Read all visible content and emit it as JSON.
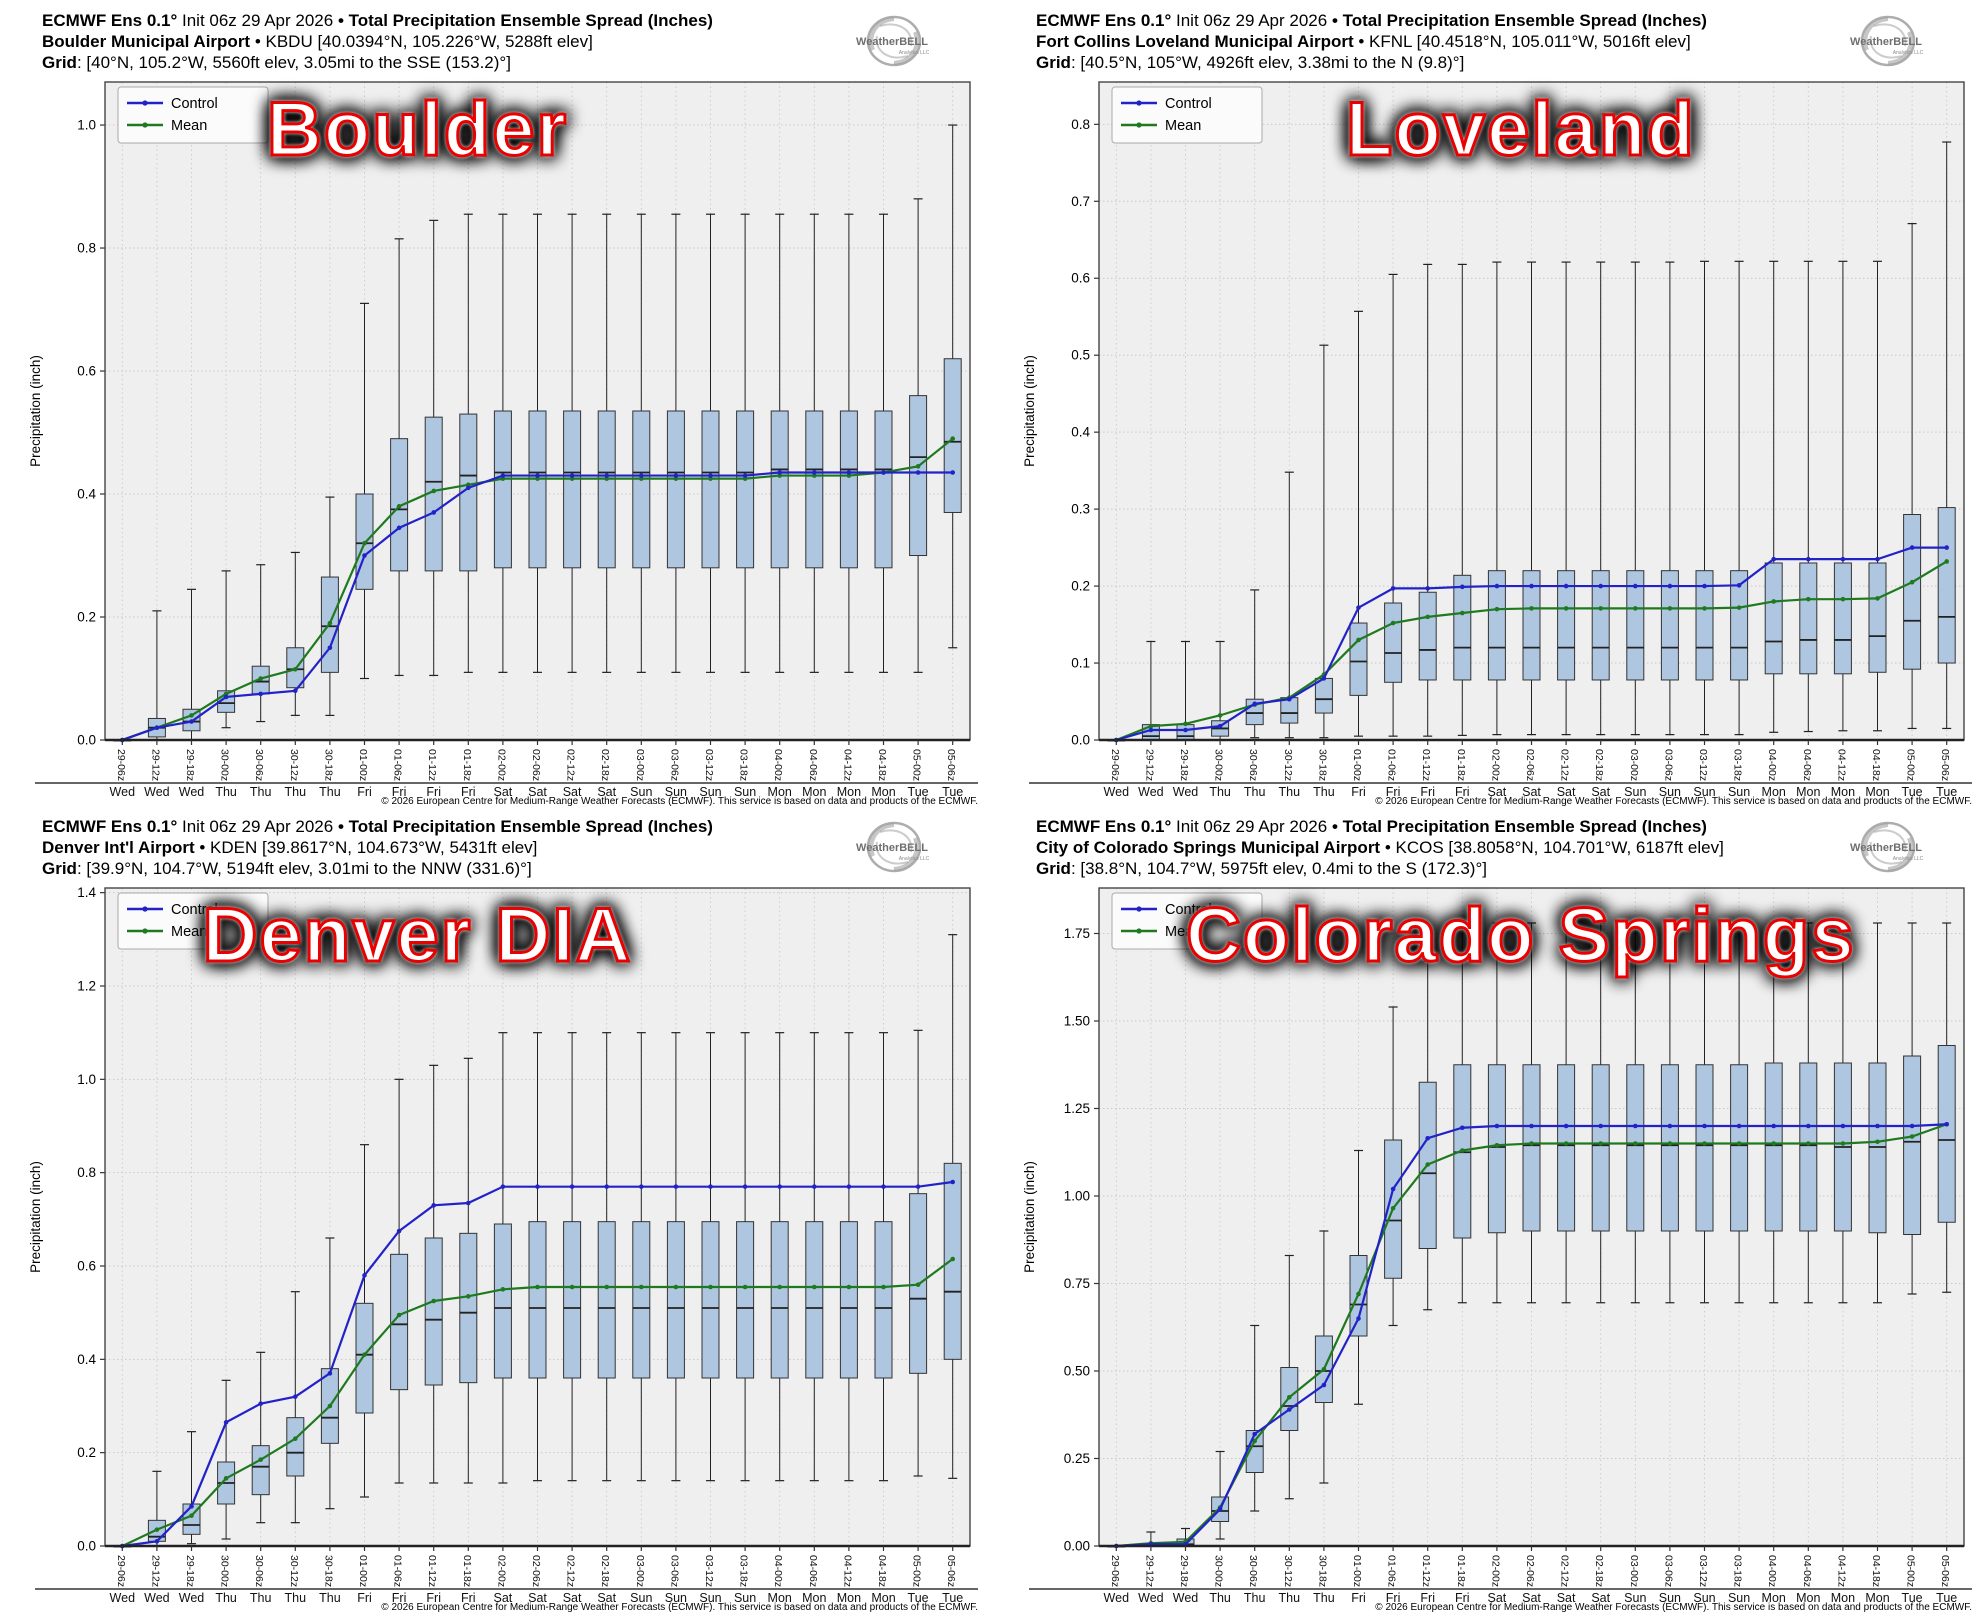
{
  "x_times": [
    "29-06z",
    "29-12z",
    "29-18z",
    "30-00z",
    "30-06z",
    "30-12z",
    "30-18z",
    "01-00z",
    "01-06z",
    "01-12z",
    "01-18z",
    "02-00z",
    "02-06z",
    "02-12z",
    "02-18z",
    "03-00z",
    "03-06z",
    "03-12z",
    "03-18z",
    "04-00z",
    "04-06z",
    "04-12z",
    "04-18z",
    "05-00z",
    "05-06z"
  ],
  "x_days": [
    "Wed",
    "Wed",
    "Wed",
    "Thu",
    "Thu",
    "Thu",
    "Thu",
    "Fri",
    "Fri",
    "Fri",
    "Fri",
    "Sat",
    "Sat",
    "Sat",
    "Sat",
    "Sun",
    "Sun",
    "Sun",
    "Sun",
    "Mon",
    "Mon",
    "Mon",
    "Mon",
    "Tue",
    "Tue"
  ],
  "colors": {
    "control": "#2222c8",
    "mean": "#1f7a1f",
    "box_fill": "#aec6e0",
    "box_edge": "#333333",
    "whisker": "#222222",
    "plot_bg": "#efefef",
    "grid": "#c9c9c9",
    "watermark": "#e90000"
  },
  "chart_data": [
    {
      "type": "box+line",
      "header": {
        "l1b": "ECMWF Ens 0.1°",
        "l1n": " Init 06z 29 Apr 2026 ",
        "l1b2": "• Total Precipitation Ensemble Spread (Inches)",
        "l2b": "Boulder Municipal Airport",
        "l2n": " • KBDU [40.0394°N, 105.226°W, 5288ft elev]",
        "l3b": "Grid",
        "l3n": ": [40°N, 105.2°W, 5560ft elev, 3.05mi to the SSE (153.2)°]"
      },
      "watermark": "Boulder",
      "logo": {
        "main": "WeatherBELL",
        "sub": "Analytics LLC"
      },
      "ylabel": "Precipitation (inch)",
      "legend": [
        "Control",
        "Mean"
      ],
      "copyright": "© 2026 European Centre for Medium-Range Weather Forecasts (ECMWF). This service is based on data and products of the ECMWF.",
      "ylim": 1.07,
      "yticks": [
        0.0,
        0.2,
        0.4,
        0.6,
        0.8,
        1.0
      ],
      "ydec": 1,
      "control": [
        0.0,
        0.02,
        0.03,
        0.07,
        0.075,
        0.08,
        0.15,
        0.3,
        0.345,
        0.37,
        0.41,
        0.43,
        0.43,
        0.43,
        0.43,
        0.43,
        0.43,
        0.43,
        0.43,
        0.435,
        0.435,
        0.435,
        0.435,
        0.435,
        0.435
      ],
      "mean": [
        0.0,
        0.02,
        0.04,
        0.075,
        0.1,
        0.115,
        0.19,
        0.32,
        0.38,
        0.405,
        0.415,
        0.425,
        0.425,
        0.425,
        0.425,
        0.425,
        0.425,
        0.425,
        0.425,
        0.43,
        0.43,
        0.43,
        0.435,
        0.445,
        0.49
      ],
      "box_lo": [
        0.0,
        0.0,
        0.0,
        0.02,
        0.03,
        0.04,
        0.04,
        0.1,
        0.105,
        0.105,
        0.11,
        0.11,
        0.11,
        0.11,
        0.11,
        0.11,
        0.11,
        0.11,
        0.11,
        0.11,
        0.11,
        0.11,
        0.11,
        0.11,
        0.15
      ],
      "box_q1": [
        0.0,
        0.005,
        0.015,
        0.045,
        0.075,
        0.085,
        0.11,
        0.245,
        0.275,
        0.275,
        0.275,
        0.28,
        0.28,
        0.28,
        0.28,
        0.28,
        0.28,
        0.28,
        0.28,
        0.28,
        0.28,
        0.28,
        0.28,
        0.3,
        0.37
      ],
      "box_med": [
        0.0,
        0.02,
        0.03,
        0.06,
        0.095,
        0.115,
        0.185,
        0.32,
        0.375,
        0.42,
        0.43,
        0.435,
        0.435,
        0.435,
        0.435,
        0.435,
        0.435,
        0.435,
        0.435,
        0.44,
        0.44,
        0.44,
        0.44,
        0.46,
        0.485
      ],
      "box_q3": [
        0.0,
        0.035,
        0.05,
        0.08,
        0.12,
        0.15,
        0.265,
        0.4,
        0.49,
        0.525,
        0.53,
        0.535,
        0.535,
        0.535,
        0.535,
        0.535,
        0.535,
        0.535,
        0.535,
        0.535,
        0.535,
        0.535,
        0.535,
        0.56,
        0.62
      ],
      "box_hi": [
        0.0,
        0.21,
        0.245,
        0.275,
        0.285,
        0.305,
        0.395,
        0.71,
        0.815,
        0.845,
        0.855,
        0.855,
        0.855,
        0.855,
        0.855,
        0.855,
        0.855,
        0.855,
        0.855,
        0.855,
        0.855,
        0.855,
        0.855,
        0.88,
        1.0
      ]
    },
    {
      "type": "box+line",
      "header": {
        "l1b": "ECMWF Ens 0.1°",
        "l1n": " Init 06z 29 Apr 2026 ",
        "l1b2": "• Total Precipitation Ensemble Spread (Inches)",
        "l2b": "Fort Collins Loveland Municipal Airport",
        "l2n": " • KFNL [40.4518°N, 105.011°W, 5016ft elev]",
        "l3b": "Grid",
        "l3n": ": [40.5°N, 105°W, 4926ft elev, 3.38mi to the N (9.8)°]"
      },
      "watermark": "Loveland",
      "logo": {
        "main": "WeatherBELL",
        "sub": "Analytics LLC"
      },
      "ylabel": "Precipitation (inch)",
      "legend": [
        "Control",
        "Mean"
      ],
      "copyright": "© 2026 European Centre for Medium-Range Weather Forecasts (ECMWF). This service is based on data and products of the ECMWF.",
      "ylim": 0.855,
      "yticks": [
        0.0,
        0.1,
        0.2,
        0.3,
        0.4,
        0.5,
        0.6,
        0.7,
        0.8
      ],
      "ydec": 1,
      "control": [
        0.0,
        0.013,
        0.013,
        0.018,
        0.047,
        0.053,
        0.08,
        0.172,
        0.197,
        0.197,
        0.199,
        0.2,
        0.2,
        0.2,
        0.2,
        0.2,
        0.2,
        0.2,
        0.201,
        0.235,
        0.235,
        0.235,
        0.235,
        0.25,
        0.25
      ],
      "mean": [
        0.0,
        0.018,
        0.021,
        0.032,
        0.046,
        0.055,
        0.085,
        0.13,
        0.152,
        0.16,
        0.165,
        0.17,
        0.171,
        0.171,
        0.171,
        0.171,
        0.171,
        0.171,
        0.172,
        0.18,
        0.183,
        0.183,
        0.184,
        0.205,
        0.232
      ],
      "box_lo": [
        0.0,
        0.0,
        0.0,
        0.0,
        0.003,
        0.003,
        0.003,
        0.005,
        0.005,
        0.005,
        0.006,
        0.007,
        0.007,
        0.007,
        0.007,
        0.007,
        0.007,
        0.007,
        0.007,
        0.01,
        0.011,
        0.012,
        0.012,
        0.015,
        0.015
      ],
      "box_q1": [
        0.0,
        0.0,
        0.0,
        0.005,
        0.02,
        0.022,
        0.035,
        0.058,
        0.075,
        0.078,
        0.078,
        0.078,
        0.078,
        0.078,
        0.078,
        0.078,
        0.078,
        0.078,
        0.078,
        0.086,
        0.086,
        0.086,
        0.088,
        0.092,
        0.1
      ],
      "box_med": [
        0.0,
        0.005,
        0.005,
        0.015,
        0.035,
        0.035,
        0.053,
        0.102,
        0.113,
        0.117,
        0.12,
        0.12,
        0.12,
        0.12,
        0.12,
        0.12,
        0.12,
        0.12,
        0.12,
        0.128,
        0.13,
        0.13,
        0.135,
        0.155,
        0.16
      ],
      "box_q3": [
        0.0,
        0.02,
        0.02,
        0.025,
        0.053,
        0.055,
        0.08,
        0.152,
        0.178,
        0.192,
        0.214,
        0.22,
        0.22,
        0.22,
        0.22,
        0.22,
        0.22,
        0.22,
        0.22,
        0.23,
        0.23,
        0.23,
        0.23,
        0.293,
        0.302
      ],
      "box_hi": [
        0.0,
        0.128,
        0.128,
        0.128,
        0.195,
        0.348,
        0.513,
        0.557,
        0.605,
        0.618,
        0.618,
        0.621,
        0.621,
        0.621,
        0.621,
        0.621,
        0.621,
        0.622,
        0.622,
        0.622,
        0.622,
        0.622,
        0.622,
        0.671,
        0.777
      ]
    },
    {
      "type": "box+line",
      "header": {
        "l1b": "ECMWF Ens 0.1°",
        "l1n": " Init 06z 29 Apr 2026 ",
        "l1b2": "• Total Precipitation Ensemble Spread (Inches)",
        "l2b": "Denver Int'l Airport",
        "l2n": " • KDEN [39.8617°N, 104.673°W, 5431ft elev]",
        "l3b": "Grid",
        "l3n": ": [39.9°N, 104.7°W, 5194ft elev, 3.01mi to the NNW (331.6)°]"
      },
      "watermark": "Denver DIA",
      "logo": {
        "main": "WeatherBELL",
        "sub": "Analytics LLC"
      },
      "ylabel": "Precipitation (inch)",
      "legend": [
        "Control",
        "Mean"
      ],
      "copyright": "© 2026 European Centre for Medium-Range Weather Forecasts (ECMWF). This service is based on data and products of the ECMWF.",
      "ylim": 1.41,
      "yticks": [
        0.0,
        0.2,
        0.4,
        0.6,
        0.8,
        1.0,
        1.2,
        1.4
      ],
      "ydec": 1,
      "control": [
        0.0,
        0.01,
        0.085,
        0.265,
        0.305,
        0.32,
        0.37,
        0.58,
        0.675,
        0.73,
        0.735,
        0.77,
        0.77,
        0.77,
        0.77,
        0.77,
        0.77,
        0.77,
        0.77,
        0.77,
        0.77,
        0.77,
        0.77,
        0.77,
        0.78
      ],
      "mean": [
        0.0,
        0.035,
        0.065,
        0.145,
        0.185,
        0.23,
        0.3,
        0.41,
        0.495,
        0.525,
        0.535,
        0.55,
        0.555,
        0.555,
        0.555,
        0.555,
        0.555,
        0.555,
        0.555,
        0.555,
        0.555,
        0.555,
        0.555,
        0.56,
        0.615
      ],
      "box_lo": [
        0.0,
        0.0,
        0.005,
        0.015,
        0.05,
        0.05,
        0.08,
        0.105,
        0.135,
        0.135,
        0.135,
        0.135,
        0.14,
        0.14,
        0.14,
        0.14,
        0.14,
        0.14,
        0.14,
        0.14,
        0.14,
        0.14,
        0.14,
        0.15,
        0.145
      ],
      "box_q1": [
        0.0,
        0.01,
        0.025,
        0.09,
        0.11,
        0.15,
        0.22,
        0.285,
        0.335,
        0.345,
        0.35,
        0.36,
        0.36,
        0.36,
        0.36,
        0.36,
        0.36,
        0.36,
        0.36,
        0.36,
        0.36,
        0.36,
        0.36,
        0.37,
        0.4
      ],
      "box_med": [
        0.0,
        0.02,
        0.045,
        0.135,
        0.17,
        0.2,
        0.275,
        0.41,
        0.475,
        0.485,
        0.5,
        0.51,
        0.51,
        0.51,
        0.51,
        0.51,
        0.51,
        0.51,
        0.51,
        0.51,
        0.51,
        0.51,
        0.51,
        0.53,
        0.545
      ],
      "box_q3": [
        0.0,
        0.055,
        0.09,
        0.18,
        0.215,
        0.275,
        0.38,
        0.52,
        0.625,
        0.66,
        0.67,
        0.69,
        0.695,
        0.695,
        0.695,
        0.695,
        0.695,
        0.695,
        0.695,
        0.695,
        0.695,
        0.695,
        0.695,
        0.755,
        0.82
      ],
      "box_hi": [
        0.0,
        0.16,
        0.245,
        0.355,
        0.415,
        0.545,
        0.66,
        0.86,
        1.0,
        1.03,
        1.045,
        1.1,
        1.1,
        1.1,
        1.1,
        1.1,
        1.1,
        1.1,
        1.1,
        1.1,
        1.1,
        1.1,
        1.1,
        1.105,
        1.31
      ]
    },
    {
      "type": "box+line",
      "header": {
        "l1b": "ECMWF Ens 0.1°",
        "l1n": " Init 06z 29 Apr 2026 ",
        "l1b2": "• Total Precipitation Ensemble Spread (Inches)",
        "l2b": "City of Colorado Springs Municipal Airport",
        "l2n": " • KCOS [38.8058°N, 104.701°W, 6187ft elev]",
        "l3b": "Grid",
        "l3n": ": [38.8°N, 104.7°W, 5975ft elev, 0.4mi to the S (172.3)°]"
      },
      "watermark": "Colorado Springs",
      "logo": {
        "main": "WeatherBELL",
        "sub": "Analytics LLC"
      },
      "ylabel": "Precipitation (inch)",
      "legend": [
        "Control",
        "Mean"
      ],
      "copyright": "© 2026 European Centre for Medium-Range Weather Forecasts (ECMWF). This service is based on data and products of the ECMWF.",
      "ylim": 1.88,
      "yticks": [
        0.0,
        0.25,
        0.5,
        0.75,
        1.0,
        1.25,
        1.5,
        1.75
      ],
      "ydec": 2,
      "control": [
        0.0,
        0.005,
        0.005,
        0.105,
        0.32,
        0.39,
        0.46,
        0.65,
        1.02,
        1.165,
        1.195,
        1.2,
        1.2,
        1.2,
        1.2,
        1.2,
        1.2,
        1.2,
        1.2,
        1.2,
        1.2,
        1.2,
        1.2,
        1.2,
        1.205
      ],
      "mean": [
        0.0,
        0.008,
        0.012,
        0.11,
        0.3,
        0.425,
        0.505,
        0.72,
        0.965,
        1.09,
        1.13,
        1.145,
        1.15,
        1.15,
        1.15,
        1.15,
        1.15,
        1.15,
        1.15,
        1.15,
        1.15,
        1.15,
        1.155,
        1.17,
        1.205
      ],
      "box_lo": [
        0.0,
        0.0,
        0.0,
        0.02,
        0.1,
        0.135,
        0.18,
        0.405,
        0.63,
        0.675,
        0.695,
        0.695,
        0.695,
        0.695,
        0.695,
        0.695,
        0.695,
        0.695,
        0.695,
        0.695,
        0.695,
        0.695,
        0.695,
        0.72,
        0.725
      ],
      "box_q1": [
        0.0,
        0.0,
        0.0,
        0.07,
        0.21,
        0.33,
        0.41,
        0.6,
        0.765,
        0.85,
        0.88,
        0.895,
        0.9,
        0.9,
        0.9,
        0.9,
        0.9,
        0.9,
        0.9,
        0.9,
        0.9,
        0.9,
        0.895,
        0.89,
        0.925
      ],
      "box_med": [
        0.0,
        0.002,
        0.005,
        0.1,
        0.285,
        0.4,
        0.5,
        0.69,
        0.93,
        1.065,
        1.125,
        1.14,
        1.145,
        1.145,
        1.145,
        1.145,
        1.145,
        1.145,
        1.145,
        1.145,
        1.145,
        1.14,
        1.14,
        1.155,
        1.16
      ],
      "box_q3": [
        0.0,
        0.005,
        0.02,
        0.14,
        0.33,
        0.51,
        0.6,
        0.83,
        1.16,
        1.325,
        1.375,
        1.375,
        1.375,
        1.375,
        1.375,
        1.375,
        1.375,
        1.375,
        1.375,
        1.38,
        1.38,
        1.38,
        1.38,
        1.4,
        1.43
      ],
      "box_hi": [
        0.0,
        0.04,
        0.05,
        0.27,
        0.63,
        0.83,
        0.9,
        1.13,
        1.54,
        1.67,
        1.78,
        1.78,
        1.78,
        1.78,
        1.78,
        1.78,
        1.78,
        1.78,
        1.78,
        1.78,
        1.78,
        1.78,
        1.78,
        1.78,
        1.78
      ]
    }
  ]
}
